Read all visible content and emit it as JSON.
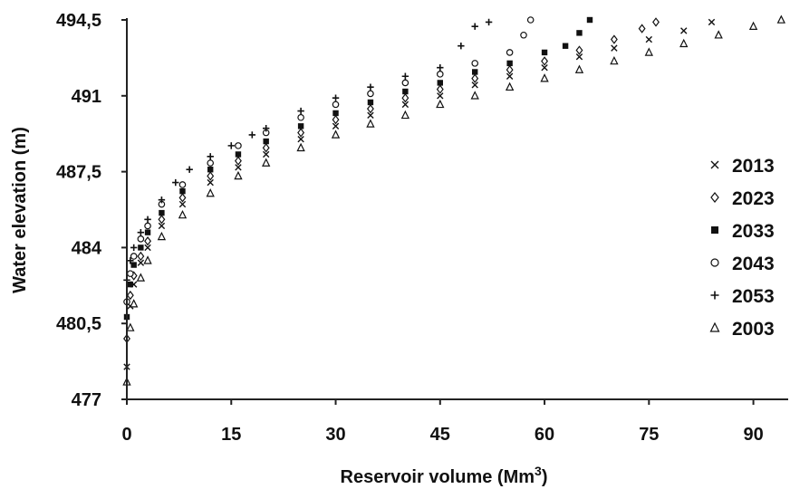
{
  "chart_data": {
    "type": "scatter",
    "title": "",
    "xlabel": "Reservoir volume (Mm",
    "xlabel_sup": "3",
    "xlabel_close": ")",
    "ylabel": "Water elevation (m)",
    "xlim": [
      0,
      95
    ],
    "ylim": [
      477,
      494.5
    ],
    "x_ticks": [
      0,
      15,
      30,
      45,
      60,
      75,
      90
    ],
    "x_tick_labels": [
      "0",
      "15",
      "30",
      "45",
      "60",
      "75",
      "90"
    ],
    "y_ticks": [
      477,
      480.5,
      484,
      487.5,
      491,
      494.5
    ],
    "y_tick_labels": [
      "477",
      "480,5",
      "484",
      "487,5",
      "491",
      "494,5"
    ],
    "grid": false,
    "legend_position": "right",
    "series": [
      {
        "name": "2013",
        "marker": "x",
        "x": [
          0,
          0.5,
          1,
          2,
          3,
          5,
          8,
          12,
          16,
          20,
          25,
          30,
          35,
          40,
          45,
          50,
          55,
          60,
          65,
          70,
          75,
          80,
          84
        ],
        "y": [
          478.5,
          481.3,
          482.3,
          483.3,
          484.0,
          485.0,
          486.0,
          487.0,
          487.7,
          488.3,
          489.0,
          489.6,
          490.1,
          490.6,
          491.0,
          491.5,
          491.9,
          492.3,
          492.8,
          493.2,
          493.6,
          494.0,
          494.4
        ]
      },
      {
        "name": "2023",
        "marker": "diamond",
        "x": [
          0,
          0.5,
          1,
          2,
          3,
          5,
          8,
          12,
          16,
          20,
          25,
          30,
          35,
          40,
          45,
          50,
          55,
          60,
          65,
          70,
          74,
          76
        ],
        "y": [
          479.8,
          481.8,
          482.7,
          483.6,
          484.3,
          485.3,
          486.3,
          487.3,
          488.0,
          488.6,
          489.3,
          489.9,
          490.4,
          490.9,
          491.3,
          491.8,
          492.2,
          492.6,
          493.1,
          493.6,
          494.1,
          494.4
        ]
      },
      {
        "name": "2033",
        "marker": "square",
        "x": [
          0,
          0.5,
          1,
          2,
          3,
          5,
          8,
          12,
          16,
          20,
          25,
          30,
          35,
          40,
          45,
          50,
          55,
          60,
          63,
          65,
          66.5
        ],
        "y": [
          480.8,
          482.3,
          483.2,
          484.0,
          484.7,
          485.6,
          486.6,
          487.6,
          488.3,
          488.9,
          489.6,
          490.2,
          490.7,
          491.2,
          491.6,
          492.1,
          492.5,
          493.0,
          493.3,
          493.9,
          494.5
        ]
      },
      {
        "name": "2043",
        "marker": "circle",
        "x": [
          0,
          0.5,
          1,
          2,
          3,
          5,
          8,
          12,
          16,
          20,
          25,
          30,
          35,
          40,
          45,
          50,
          55,
          57,
          58
        ],
        "y": [
          481.5,
          482.8,
          483.6,
          484.4,
          485.0,
          486.0,
          486.9,
          487.9,
          488.7,
          489.3,
          490.0,
          490.6,
          491.1,
          491.6,
          492.0,
          492.5,
          493.0,
          493.8,
          494.5
        ]
      },
      {
        "name": "2053",
        "marker": "plus",
        "x": [
          0,
          0.5,
          1,
          2,
          3,
          5,
          7,
          9,
          12,
          15,
          18,
          20,
          25,
          30,
          35,
          40,
          45,
          48,
          50,
          52
        ],
        "y": [
          482.5,
          483.4,
          484.0,
          484.7,
          485.3,
          486.2,
          487.0,
          487.6,
          488.2,
          488.7,
          489.2,
          489.5,
          490.3,
          490.9,
          491.4,
          491.9,
          492.3,
          493.3,
          494.2,
          494.4
        ]
      },
      {
        "name": "2003",
        "marker": "triangle",
        "x": [
          0,
          0.5,
          1,
          2,
          3,
          5,
          8,
          12,
          16,
          20,
          25,
          30,
          35,
          40,
          45,
          50,
          55,
          60,
          65,
          70,
          75,
          80,
          85,
          90,
          94
        ],
        "y": [
          477.8,
          480.3,
          481.4,
          482.6,
          483.4,
          484.5,
          485.5,
          486.5,
          487.3,
          487.9,
          488.6,
          489.2,
          489.7,
          490.1,
          490.6,
          491.0,
          491.4,
          491.8,
          492.2,
          492.6,
          493.0,
          493.4,
          493.8,
          494.2,
          494.5
        ]
      }
    ]
  }
}
